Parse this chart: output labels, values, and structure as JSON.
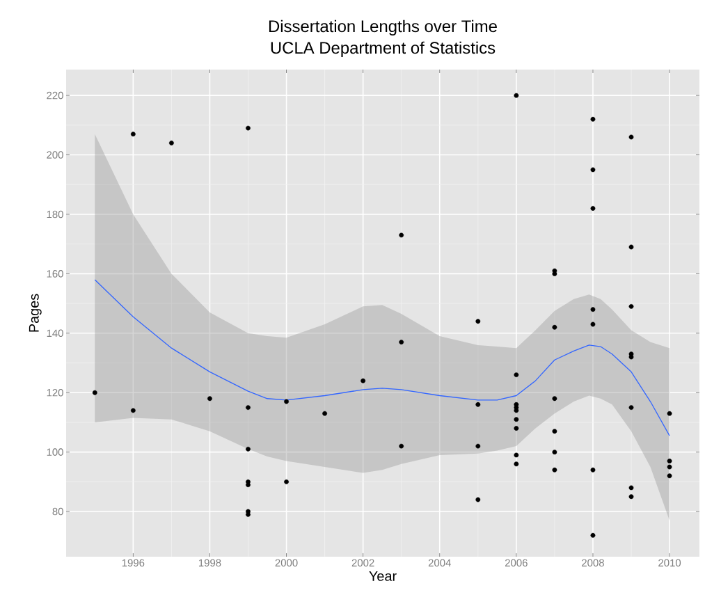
{
  "chart_data": {
    "type": "scatter",
    "title": "Dissertation Lengths over Time",
    "subtitle": "UCLA Department of Statistics",
    "xlabel": "Year",
    "ylabel": "Pages",
    "xlim": [
      1994.25,
      2010.78
    ],
    "ylim": [
      64.8,
      228.7
    ],
    "xticks": [
      1996,
      1998,
      2000,
      2002,
      2004,
      2006,
      2008,
      2010
    ],
    "yticks": [
      80,
      100,
      120,
      140,
      160,
      180,
      200,
      220
    ],
    "grid": true,
    "series": [
      {
        "color": "#000000",
        "marker": "circle",
        "x": [
          1995,
          1996,
          1996,
          1997,
          1998,
          1999,
          1999,
          1999,
          1999,
          1999,
          1999,
          1999,
          2000,
          2000,
          2001,
          2002,
          2003,
          2003,
          2003,
          2005,
          2005,
          2005,
          2005,
          2006,
          2006,
          2006,
          2006,
          2006,
          2006,
          2006,
          2006,
          2006,
          2007,
          2007,
          2007,
          2007,
          2007,
          2007,
          2007,
          2008,
          2008,
          2008,
          2008,
          2008,
          2008,
          2008,
          2009,
          2009,
          2009,
          2009,
          2009,
          2009,
          2009,
          2009,
          2010,
          2010,
          2010,
          2010
        ],
        "values": [
          120,
          207,
          114,
          204,
          118,
          209,
          115,
          101,
          90,
          89,
          80,
          79,
          117,
          90,
          113,
          124,
          173,
          137,
          102,
          144,
          116,
          102,
          84,
          220,
          126,
          116,
          115,
          114,
          111,
          108,
          99,
          96,
          161,
          160,
          142,
          118,
          107,
          100,
          94,
          212,
          195,
          182,
          148,
          143,
          94,
          72,
          206,
          169,
          149,
          133,
          132,
          115,
          88,
          85,
          113,
          97,
          95,
          92
        ]
      },
      {
        "type": "line",
        "color": "#3366ff",
        "marker": "none",
        "x": [
          1995,
          1996,
          1997,
          1998,
          1999,
          1999.5,
          2000,
          2001,
          2002,
          2002.5,
          2003,
          2004,
          2005,
          2005.5,
          2006,
          2006.5,
          2007,
          2007.5,
          2007.9,
          2008.2,
          2008.5,
          2009,
          2009.5,
          2010
        ],
        "values": [
          158,
          145.5,
          135,
          127,
          120.5,
          118,
          117.5,
          119,
          121,
          121.5,
          121,
          119,
          117.5,
          117.5,
          119,
          124,
          131,
          134,
          136,
          135.5,
          133,
          127,
          117,
          105.5
        ],
        "upper": [
          207,
          180,
          160,
          147,
          140,
          139,
          138.5,
          143,
          149,
          149.5,
          146.5,
          139,
          136,
          135.5,
          135,
          141,
          147.5,
          151.5,
          153,
          151.5,
          148,
          141,
          137,
          135
        ],
        "lower": [
          110,
          111.5,
          111,
          107,
          101,
          98.5,
          97,
          95,
          93,
          94,
          96,
          99,
          99.5,
          100.5,
          102,
          108,
          113,
          117,
          119,
          118,
          116,
          107,
          95,
          77
        ]
      }
    ]
  }
}
